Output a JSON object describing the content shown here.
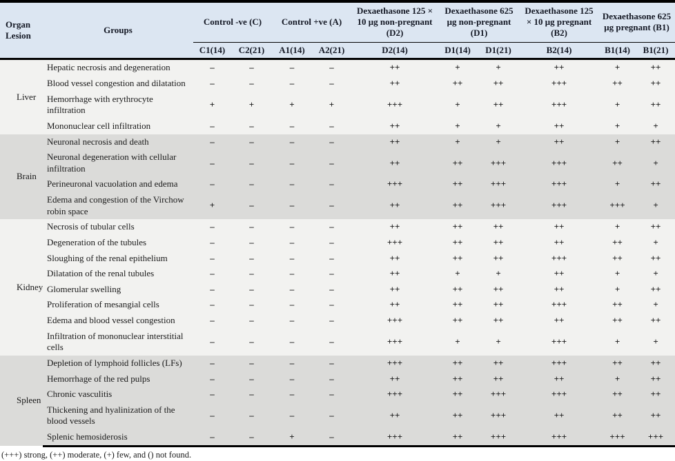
{
  "table": {
    "header": {
      "organ_line1": "Organ",
      "organ_line2": "Lesion",
      "groups_label": "Groups",
      "group_columns": [
        {
          "label": "Control -ve (C)",
          "subs": [
            "C1(14)",
            "C2(21)"
          ]
        },
        {
          "label": "Control +ve (A)",
          "subs": [
            "A1(14)",
            "A2(21)"
          ]
        },
        {
          "label": "Dexaethasone 125 × 10 μg non-pregnant (D2)",
          "subs": [
            "D2(14)"
          ]
        },
        {
          "label": "Dexaethasone 625 μg non-pregnant (D1)",
          "subs": [
            "D1(14)",
            "D1(21)"
          ]
        },
        {
          "label": "Dexaethasone 125 × 10 μg pregnant (B2)",
          "subs": [
            "B2(14)"
          ]
        },
        {
          "label": "Dexaethasone 625 μg pregnant (B1)",
          "subs": [
            "B1(14)",
            "B1(21)"
          ]
        }
      ]
    },
    "sections": [
      {
        "organ": "Liver",
        "rows": [
          {
            "lesion": "Hepatic necrosis and degeneration",
            "values": [
              "–",
              "–",
              "–",
              "–",
              "++",
              "+",
              "+",
              "++",
              "+",
              "++"
            ]
          },
          {
            "lesion": "Blood vessel congestion and dilatation",
            "values": [
              "–",
              "–",
              "–",
              "–",
              "++",
              "++",
              "++",
              "+++",
              "++",
              "++"
            ]
          },
          {
            "lesion": "Hemorrhage with erythrocyte infiltration",
            "values": [
              "+",
              "+",
              "+",
              "+",
              "+++",
              "+",
              "++",
              "+++",
              "+",
              "++"
            ]
          },
          {
            "lesion": "Mononuclear cell infiltration",
            "values": [
              "–",
              "–",
              "–",
              "–",
              "++",
              "+",
              "+",
              "++",
              "+",
              "+"
            ]
          }
        ]
      },
      {
        "organ": "Brain",
        "rows": [
          {
            "lesion": "Neuronal necrosis and death",
            "values": [
              "–",
              "–",
              "–",
              "–",
              "++",
              "+",
              "+",
              "++",
              "+",
              "++"
            ]
          },
          {
            "lesion": "Neuronal degeneration with cellular infiltration",
            "values": [
              "–",
              "–",
              "–",
              "–",
              "++",
              "++",
              "+++",
              "+++",
              "++",
              "+"
            ]
          },
          {
            "lesion": "Perineuronal vacuolation and edema",
            "values": [
              "–",
              "–",
              "–",
              "–",
              "+++",
              "++",
              "+++",
              "+++",
              "+",
              "++"
            ]
          },
          {
            "lesion": "Edema and congestion of the Virchow robin space",
            "values": [
              "+",
              "–",
              "–",
              "–",
              "++",
              "++",
              "+++",
              "+++",
              "+++",
              "+"
            ]
          }
        ]
      },
      {
        "organ": "Kidney",
        "rows": [
          {
            "lesion": "Necrosis of tubular cells",
            "values": [
              "–",
              "–",
              "–",
              "–",
              "++",
              "++",
              "++",
              "++",
              "+",
              "++"
            ]
          },
          {
            "lesion": "Degeneration of the tubules",
            "values": [
              "–",
              "–",
              "–",
              "–",
              "+++",
              "++",
              "++",
              "++",
              "++",
              "+"
            ]
          },
          {
            "lesion": "Sloughing of the renal epithelium",
            "values": [
              "–",
              "–",
              "–",
              "–",
              "++",
              "++",
              "++",
              "+++",
              "++",
              "++"
            ]
          },
          {
            "lesion": "Dilatation of the renal tubules",
            "values": [
              "–",
              "–",
              "–",
              "–",
              "++",
              "+",
              "+",
              "++",
              "+",
              "+"
            ]
          },
          {
            "lesion": "Glomerular swelling",
            "values": [
              "–",
              "–",
              "–",
              "–",
              "++",
              "++",
              "++",
              "++",
              "+",
              "++"
            ]
          },
          {
            "lesion": "Proliferation of mesangial cells",
            "values": [
              "–",
              "–",
              "–",
              "–",
              "++",
              "++",
              "++",
              "+++",
              "++",
              "+"
            ]
          },
          {
            "lesion": "Edema and blood vessel congestion",
            "values": [
              "–",
              "–",
              "–",
              "–",
              "+++",
              "++",
              "++",
              "++",
              "++",
              "++"
            ]
          },
          {
            "lesion": "Infiltration of mononuclear interstitial cells",
            "values": [
              "–",
              "–",
              "–",
              "–",
              "+++",
              "+",
              "+",
              "+++",
              "+",
              "+"
            ]
          }
        ]
      },
      {
        "organ": "Spleen",
        "rows": [
          {
            "lesion": "Depletion of lymphoid follicles (LFs)",
            "values": [
              "–",
              "–",
              "–",
              "–",
              "+++",
              "++",
              "++",
              "+++",
              "++",
              "++"
            ]
          },
          {
            "lesion": "Hemorrhage of the red pulps",
            "values": [
              "–",
              "–",
              "–",
              "–",
              "++",
              "++",
              "++",
              "++",
              "+",
              "++"
            ]
          },
          {
            "lesion": "Chronic vasculitis",
            "values": [
              "–",
              "–",
              "–",
              "–",
              "+++",
              "++",
              "+++",
              "+++",
              "++",
              "++"
            ]
          },
          {
            "lesion": "Thickening and hyalinization of the blood vessels",
            "values": [
              "–",
              "–",
              "–",
              "–",
              "++",
              "++",
              "+++",
              "++",
              "++",
              "++"
            ]
          },
          {
            "lesion": "Splenic hemosiderosis",
            "values": [
              "–",
              "–",
              "+",
              "–",
              "+++",
              "++",
              "+++",
              "+++",
              "+++",
              "+++"
            ]
          }
        ]
      }
    ],
    "footnote": "(+++) strong, (++) moderate, (+) few, and () not found.",
    "colors": {
      "header_bg": "#dce6f2",
      "section_light_bg": "#f2f2f0",
      "section_dark_bg": "#dbdbd9",
      "border": "#000000"
    }
  }
}
